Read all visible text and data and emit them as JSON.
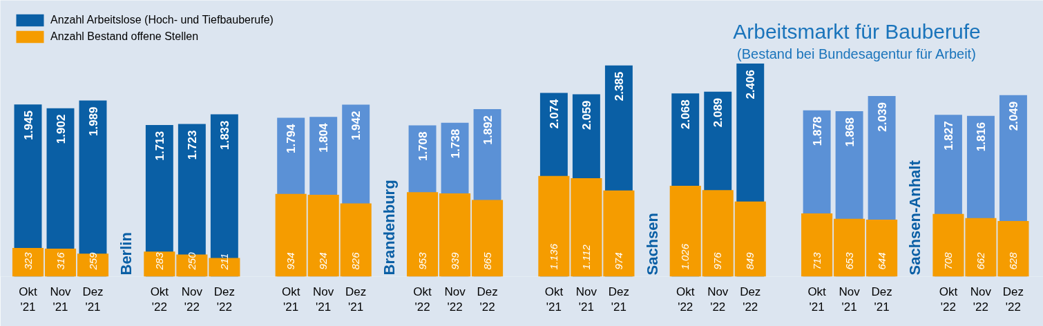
{
  "chart_data": {
    "type": "bar",
    "title": "Arbeitsmarkt für Bauberufe",
    "subtitle": "(Bestand bei Bundesagentur für Arbeit)",
    "categories": [
      "Okt '21",
      "Nov '21",
      "Dez '21",
      "Okt '22",
      "Nov '22",
      "Dez '22",
      "Okt '21",
      "Nov '21",
      "Dez '21",
      "Okt '22",
      "Nov '22",
      "Dez '22",
      "Okt '21",
      "Nov '21",
      "Dez '21",
      "Okt '22",
      "Nov '22",
      "Dez '22",
      "Okt '21",
      "Nov '21",
      "Dez '21",
      "Okt '22",
      "Nov '22",
      "Dez '22"
    ],
    "series": [
      {
        "name": "Anzahl Arbeitslose (Hoch- und Tiefbauberufe)",
        "color": "#0a5fa5",
        "colors": [
          "#0a5fa5",
          "#0a5fa5",
          "#0a5fa5",
          "#0a5fa5",
          "#0a5fa5",
          "#0a5fa5",
          "#5b91d6",
          "#5b91d6",
          "#5b91d6",
          "#5b91d6",
          "#5b91d6",
          "#5b91d6",
          "#0a5fa5",
          "#0a5fa5",
          "#0a5fa5",
          "#0a5fa5",
          "#0a5fa5",
          "#0a5fa5",
          "#5b91d6",
          "#5b91d6",
          "#5b91d6",
          "#5b91d6",
          "#5b91d6",
          "#5b91d6"
        ],
        "values": [
          1945,
          1902,
          1989,
          1713,
          1723,
          1833,
          1794,
          1804,
          1942,
          1708,
          1738,
          1892,
          2074,
          2059,
          2385,
          2068,
          2089,
          2406,
          1878,
          1868,
          2039,
          1827,
          1816,
          2049
        ],
        "value_labels": [
          "1.945",
          "1.902",
          "1.989",
          "1.713",
          "1.723",
          "1.833",
          "1.794",
          "1.804",
          "1.942",
          "1.708",
          "1.738",
          "1.892",
          "2.074",
          "2.059",
          "2.385",
          "2.068",
          "2.089",
          "2.406",
          "1.878",
          "1.868",
          "2.039",
          "1.827",
          "1.816",
          "2.049"
        ]
      },
      {
        "name": "Anzahl Bestand offene Stellen",
        "color": "#f59c00",
        "values": [
          323,
          316,
          259,
          283,
          250,
          211,
          934,
          924,
          826,
          953,
          939,
          865,
          1136,
          1112,
          974,
          1026,
          976,
          849,
          713,
          653,
          644,
          708,
          662,
          628
        ],
        "value_labels": [
          "323",
          "316",
          "259",
          "283",
          "250",
          "211",
          "934",
          "924",
          "826",
          "953",
          "939",
          "865",
          "1.136",
          "1.112",
          "974",
          "1.026",
          "976",
          "849",
          "713",
          "653",
          "644",
          "708",
          "662",
          "628"
        ]
      }
    ],
    "annotations": [
      "Berlin",
      "Brandenburg",
      "Sachsen",
      "Sachsen-Anhalt"
    ],
    "legend": "top left"
  }
}
